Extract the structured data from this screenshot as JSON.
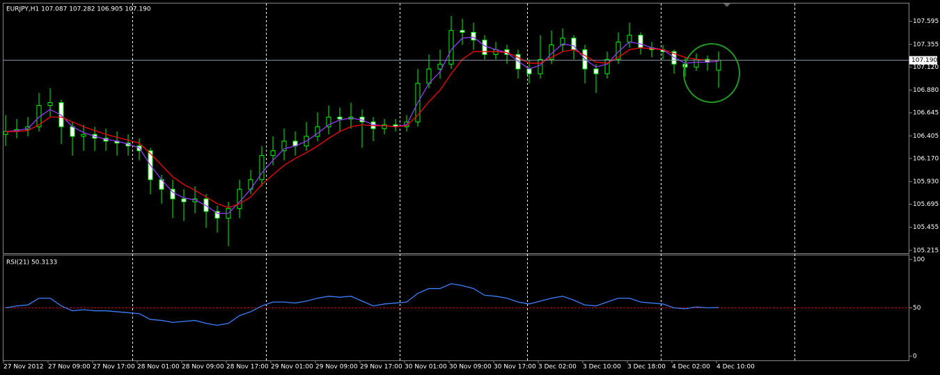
{
  "chart_data": [
    {
      "type": "candlestick",
      "title": "EURJPY,H1  107.087 107.282 106.905 107.190",
      "categories": [
        "27 Nov 2012",
        null,
        null,
        null,
        "27 Nov 09:00",
        null,
        null,
        null,
        "27 Nov 17:00",
        null,
        null,
        null,
        "28 Nov 01:00",
        null,
        null,
        null,
        "28 Nov 09:00",
        null,
        null,
        null,
        "28 Nov 17:00",
        null,
        null,
        null,
        "29 Nov 01:00",
        null,
        null,
        null,
        "29 Nov 09:00",
        null,
        null,
        null,
        "29 Nov 17:00",
        null,
        null,
        null,
        "30 Nov 01:00",
        null,
        null,
        null,
        "30 Nov 09:00",
        null,
        null,
        null,
        "30 Nov 17:00",
        null,
        null,
        null,
        "3 Dec 02:00",
        null,
        null,
        null,
        "3 Dec 10:00",
        null,
        null,
        null,
        "3 Dec 18:00",
        null,
        null,
        null,
        "4 Dec 02:00",
        null,
        null,
        null,
        "4 Dec 10:00"
      ],
      "open": [
        106.42,
        106.45,
        106.47,
        106.5,
        106.72,
        106.75,
        106.5,
        106.4,
        106.42,
        106.38,
        106.35,
        106.33,
        106.3,
        106.25,
        105.95,
        105.85,
        105.75,
        105.72,
        105.75,
        105.62,
        105.55,
        105.65,
        105.85,
        105.95,
        106.2,
        106.25,
        106.35,
        106.3,
        106.4,
        106.5,
        106.6,
        106.58,
        106.6,
        106.55,
        106.48,
        106.52,
        106.5,
        106.55,
        106.95,
        107.1,
        107.15,
        107.5,
        107.48,
        107.4,
        107.25,
        107.3,
        107.25,
        107.1,
        107.05,
        107.2,
        107.35,
        107.42,
        107.3,
        107.1,
        107.05,
        107.2,
        107.38,
        107.45,
        107.32,
        107.3,
        107.28,
        107.15,
        107.12,
        107.2,
        107.087
      ],
      "high": [
        106.62,
        106.58,
        106.6,
        106.85,
        106.9,
        106.78,
        106.55,
        106.52,
        106.5,
        106.48,
        106.45,
        106.42,
        106.38,
        106.28,
        106.0,
        105.95,
        105.85,
        105.88,
        105.8,
        105.68,
        105.72,
        105.95,
        106.05,
        106.3,
        106.4,
        106.48,
        106.45,
        106.55,
        106.65,
        106.72,
        106.7,
        106.75,
        106.68,
        106.6,
        106.58,
        106.58,
        106.62,
        107.1,
        107.25,
        107.3,
        107.65,
        107.62,
        107.58,
        107.45,
        107.38,
        107.35,
        107.3,
        107.2,
        107.45,
        107.5,
        107.52,
        107.45,
        107.35,
        107.15,
        107.28,
        107.48,
        107.58,
        107.48,
        107.38,
        107.35,
        107.3,
        107.22,
        107.26,
        107.24,
        107.282
      ],
      "low": [
        106.3,
        106.38,
        106.4,
        106.45,
        106.6,
        106.32,
        106.2,
        106.25,
        106.25,
        106.25,
        106.2,
        106.2,
        106.15,
        105.8,
        105.7,
        105.55,
        105.52,
        105.6,
        105.45,
        105.4,
        105.26,
        105.55,
        105.8,
        105.88,
        106.1,
        106.15,
        106.2,
        106.25,
        106.35,
        106.42,
        106.45,
        106.48,
        106.28,
        106.35,
        106.42,
        106.45,
        106.45,
        106.5,
        106.9,
        107.0,
        107.1,
        107.35,
        107.3,
        107.2,
        107.2,
        107.15,
        107.0,
        106.95,
        107.0,
        107.15,
        107.28,
        107.2,
        106.95,
        106.85,
        107.0,
        107.15,
        107.32,
        107.25,
        107.22,
        107.2,
        107.05,
        107.02,
        107.08,
        107.08,
        106.905
      ],
      "close": [
        106.45,
        106.47,
        106.5,
        106.72,
        106.75,
        106.5,
        106.4,
        106.42,
        106.38,
        106.35,
        106.33,
        106.3,
        106.25,
        105.95,
        105.85,
        105.75,
        105.72,
        105.75,
        105.62,
        105.55,
        105.65,
        105.85,
        105.95,
        106.2,
        106.25,
        106.35,
        106.3,
        106.4,
        106.5,
        106.6,
        106.58,
        106.6,
        106.55,
        106.48,
        106.52,
        106.5,
        106.55,
        106.95,
        107.1,
        107.15,
        107.5,
        107.48,
        107.4,
        107.25,
        107.3,
        107.25,
        107.1,
        107.05,
        107.2,
        107.35,
        107.42,
        107.3,
        107.1,
        107.05,
        107.2,
        107.38,
        107.45,
        107.32,
        107.3,
        107.28,
        107.15,
        107.12,
        107.2,
        107.17,
        107.19
      ],
      "up_color": "#000000",
      "down_color": "#ffffff",
      "wick_color": "#00ff00",
      "series": [
        {
          "color": "#9933ff",
          "values": [
            106.45,
            106.46,
            106.48,
            106.6,
            106.68,
            106.62,
            106.5,
            106.44,
            106.4,
            106.37,
            106.35,
            106.32,
            106.28,
            106.1,
            105.95,
            105.82,
            105.76,
            105.74,
            105.68,
            105.6,
            105.6,
            105.72,
            105.85,
            106.02,
            106.15,
            106.27,
            106.3,
            106.35,
            106.43,
            106.52,
            106.57,
            106.59,
            106.57,
            106.52,
            106.51,
            106.5,
            106.52,
            106.75,
            106.95,
            107.07,
            107.3,
            107.42,
            107.43,
            107.34,
            107.3,
            107.27,
            107.18,
            107.1,
            107.14,
            107.26,
            107.36,
            107.34,
            107.2,
            107.12,
            107.15,
            107.28,
            107.38,
            107.36,
            107.32,
            107.3,
            107.22,
            107.16,
            107.17,
            107.17,
            107.18
          ]
        },
        {
          "color": "#ff0000",
          "values": [
            106.45,
            106.45,
            106.46,
            106.52,
            106.6,
            106.6,
            106.55,
            106.5,
            106.46,
            106.42,
            106.39,
            106.36,
            106.33,
            106.22,
            106.1,
            105.98,
            105.9,
            105.84,
            105.77,
            105.7,
            105.66,
            105.7,
            105.77,
            105.9,
            106.0,
            106.1,
            106.17,
            106.23,
            106.3,
            106.38,
            106.45,
            106.5,
            106.52,
            106.51,
            106.51,
            106.5,
            106.51,
            106.62,
            106.76,
            106.88,
            107.05,
            107.2,
            107.28,
            107.28,
            107.28,
            107.27,
            107.22,
            107.16,
            107.16,
            107.22,
            107.28,
            107.3,
            107.24,
            107.17,
            107.16,
            107.22,
            107.3,
            107.32,
            107.31,
            107.3,
            107.26,
            107.22,
            107.2,
            107.19,
            107.19
          ]
        }
      ],
      "price_line": {
        "value": 107.19,
        "label": "107.190"
      },
      "ylim": [
        105.2,
        107.78
      ],
      "yticks": [
        107.595,
        107.355,
        {
          "value": 107.12,
          "label": "107.120"
        },
        {
          "value": 106.88,
          "label": "106.880"
        },
        106.645,
        106.405,
        {
          "value": 106.17,
          "label": "106.170"
        },
        {
          "value": 105.93,
          "label": "105.930"
        },
        105.695,
        105.455,
        105.215
      ],
      "grid": false
    },
    {
      "type": "line",
      "title": "RSI(21) 50.3133",
      "series": [
        {
          "color": "#3a7fff",
          "values": [
            50,
            52,
            53,
            60,
            60,
            52,
            47,
            48,
            47,
            47,
            46,
            45,
            44,
            38,
            37,
            35,
            36,
            37,
            34,
            32,
            34,
            42,
            46,
            52,
            56,
            56,
            55,
            57,
            60,
            62,
            61,
            62,
            57,
            52,
            54,
            55,
            56,
            65,
            70,
            70,
            75,
            73,
            70,
            63,
            62,
            60,
            56,
            54,
            57,
            60,
            62,
            58,
            53,
            52,
            56,
            60,
            60,
            56,
            55,
            54,
            50,
            49,
            51,
            50,
            50.3133
          ]
        }
      ],
      "level": 50,
      "level_color": "#cc0000",
      "ylim": [
        -4.3,
        104.3
      ],
      "yticks": [
        100,
        50,
        0
      ],
      "grid": false
    }
  ]
}
